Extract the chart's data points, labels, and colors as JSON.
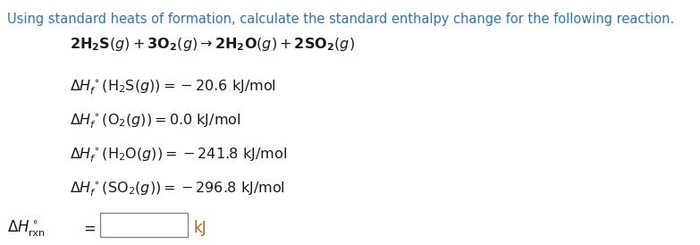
{
  "bg_color": "#ffffff",
  "header_color": "#2e75b6",
  "equation_color": "#1a1a1a",
  "kJ_color": "#c55a11",
  "header_text": "Using standard heats of formation, calculate the standard enthalpy change for the following reaction.",
  "font_size_header": 10.5,
  "font_size_equation": 11.5,
  "font_size_lines": 11.5,
  "font_size_bottom": 12
}
